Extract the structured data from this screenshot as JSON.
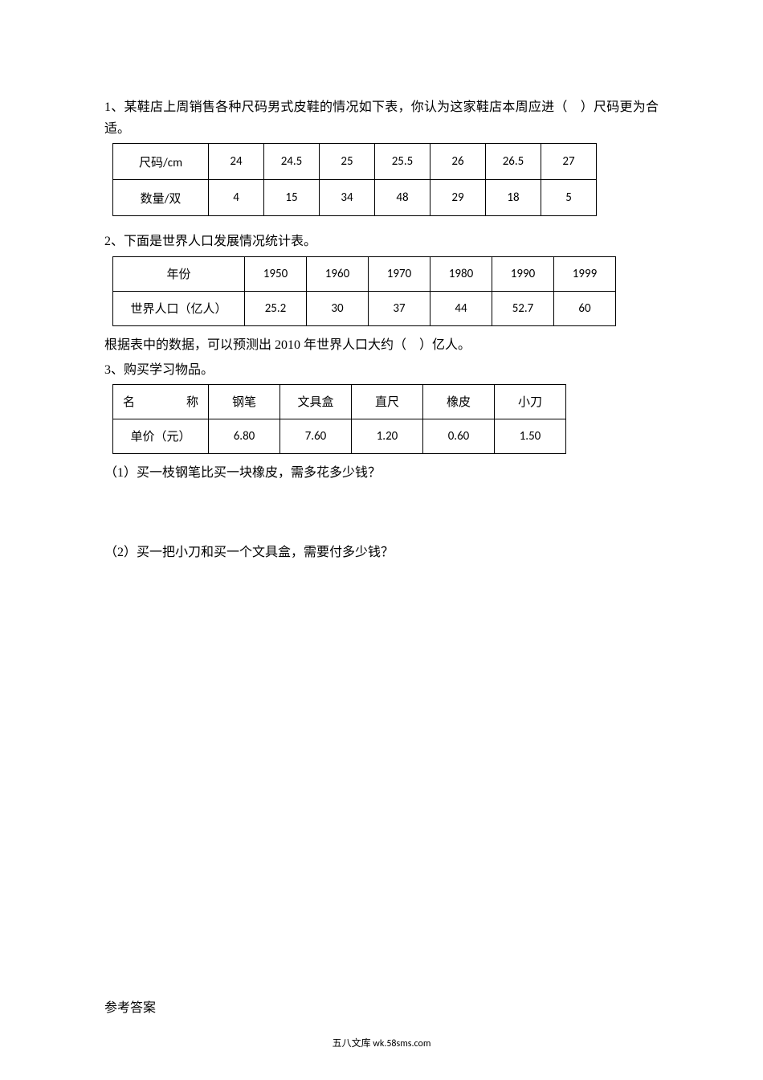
{
  "q1": {
    "prompt": "1、某鞋店上周销售各种尺码男式皮鞋的情况如下表，你认为这家鞋店本周应进（　）尺码更为合适。",
    "table": {
      "header_label": "尺码/cm",
      "row2_label": "数量/双",
      "sizes": [
        "24",
        "24.5",
        "25",
        "25.5",
        "26",
        "26.5",
        "27"
      ],
      "quantities": [
        "4",
        "15",
        "34",
        "48",
        "29",
        "18",
        "5"
      ]
    }
  },
  "q2": {
    "prompt": "2、下面是世界人口发展情况统计表。",
    "table": {
      "header_label": "年份",
      "row2_label": "世界人口（亿人）",
      "years": [
        "1950",
        "1960",
        "1970",
        "1980",
        "1990",
        "1999"
      ],
      "populations": [
        "25.2",
        "30",
        "37",
        "44",
        "52.7",
        "60"
      ]
    },
    "followup": "根据表中的数据，可以预测出 2010 年世界人口大约（　）亿人。"
  },
  "q3": {
    "prompt": "3、购买学习物品。",
    "table": {
      "header_label_left": "名",
      "header_label_right": "称",
      "row2_label": "单价（元）",
      "items": [
        "钢笔",
        "文具盒",
        "直尺",
        "橡皮",
        "小刀"
      ],
      "prices": [
        "6.80",
        "7.60",
        "1.20",
        "0.60",
        "1.50"
      ]
    },
    "sub1": "（1）买一枝钢笔比买一块橡皮，需多花多少钱？",
    "sub2": "（2）买一把小刀和买一个文具盒，需要付多少钱？"
  },
  "answer_label": "参考答案",
  "footer": "五八文库 wk.58sms.com",
  "style": {
    "background_color": "#ffffff",
    "text_color": "#000000",
    "border_color": "#000000",
    "body_fontsize": 16,
    "table_fontsize": 15,
    "footer_fontsize": 12
  }
}
